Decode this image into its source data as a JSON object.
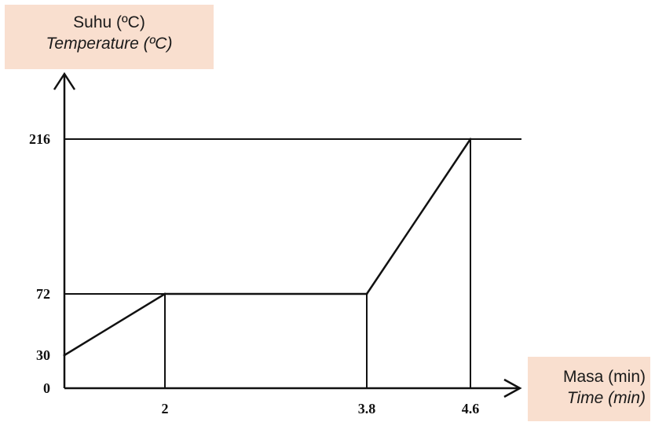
{
  "chart_data": {
    "type": "line",
    "ylabel": {
      "line1": "Suhu (ºC)",
      "line2": "Temperature (ºC)"
    },
    "xlabel": {
      "line1": "Masa (min)",
      "line2": "Time (min)"
    },
    "x": [
      0,
      2,
      3.8,
      4.6
    ],
    "y": [
      30,
      72,
      72,
      216
    ],
    "xticks": [
      {
        "value": 2,
        "label": "2"
      },
      {
        "value": 3.8,
        "label": "3.8"
      },
      {
        "value": 4.6,
        "label": "4.6"
      }
    ],
    "yticks": [
      {
        "value": 0,
        "label": "0"
      },
      {
        "value": 30,
        "label": "30"
      },
      {
        "value": 72,
        "label": "72"
      },
      {
        "value": 216,
        "label": "216"
      }
    ],
    "reference_lines": {
      "horizontal": [
        72,
        216
      ],
      "vertical": [
        2,
        3.8,
        4.6
      ]
    },
    "grid": false,
    "colors": {
      "line": "#111111",
      "label_background": "#f9dfcf"
    }
  }
}
